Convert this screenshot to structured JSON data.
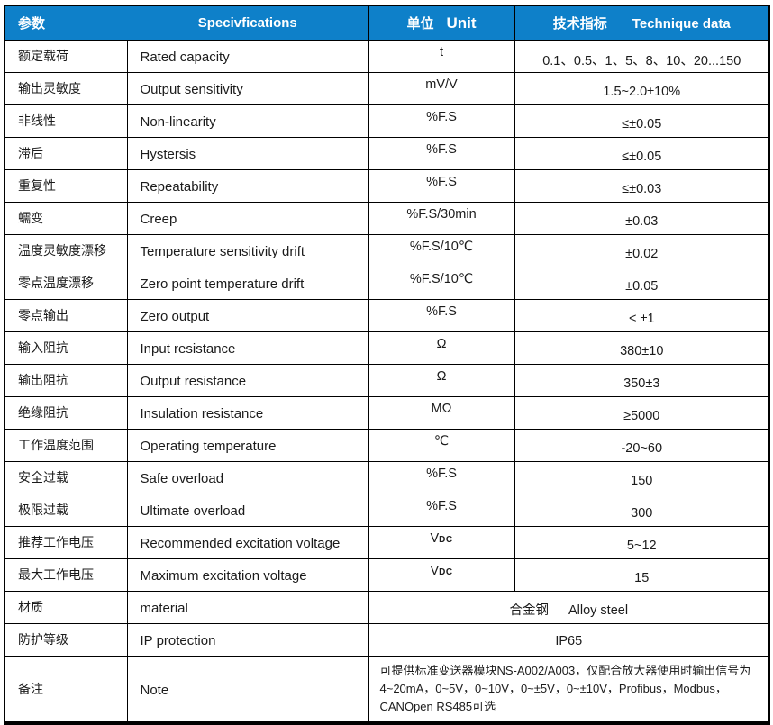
{
  "colors": {
    "header_bg": "#0E80C9",
    "border": "#000000",
    "text": "#1B1B1B"
  },
  "table": {
    "header": {
      "param_cn": "参数",
      "spec_en": "Specivfications",
      "unit_cn": "单位",
      "unit_en": "Unit",
      "tech_cn": "技术指标",
      "tech_en": "Technique data"
    },
    "rows": [
      {
        "cn": "额定载荷",
        "en": "Rated capacity",
        "unit": "t",
        "value": "0.1、0.5、1、5、8、10、20...150"
      },
      {
        "cn": "输出灵敏度",
        "en": "Output sensitivity",
        "unit": "mV/V",
        "value": "1.5~2.0±10%"
      },
      {
        "cn": "非线性",
        "en": "Non-linearity",
        "unit": "%F.S",
        "value": "≤±0.05"
      },
      {
        "cn": "滞后",
        "en": "Hystersis",
        "unit": "%F.S",
        "value": "≤±0.05"
      },
      {
        "cn": "重复性",
        "en": "Repeatability",
        "unit": "%F.S",
        "value": "≤±0.03"
      },
      {
        "cn": "蠕变",
        "en": "Creep",
        "unit": "%F.S/30min",
        "value": "±0.03"
      },
      {
        "cn": "温度灵敏度漂移",
        "en": "Temperature sensitivity drift",
        "unit": "%F.S/10℃",
        "value": "±0.02"
      },
      {
        "cn": "零点温度漂移",
        "en": "Zero point temperature drift",
        "unit": "%F.S/10℃",
        "value": "±0.05"
      },
      {
        "cn": "零点输出",
        "en": "Zero output",
        "unit": "%F.S",
        "value": "< ±1"
      },
      {
        "cn": "输入阻抗",
        "en": "Input resistance",
        "unit": "Ω",
        "value": "380±10"
      },
      {
        "cn": "输出阻抗",
        "en": "Output resistance",
        "unit": "Ω",
        "value": "350±3"
      },
      {
        "cn": "绝缘阻抗",
        "en": "Insulation resistance",
        "unit": "MΩ",
        "value": "≥5000"
      },
      {
        "cn": "工作温度范围",
        "en": "Operating temperature",
        "unit": "℃",
        "value": "-20~60"
      },
      {
        "cn": "安全过载",
        "en": "Safe overload",
        "unit": "%F.S",
        "value": "150"
      },
      {
        "cn": "极限过载",
        "en": "Ultimate overload",
        "unit": "%F.S",
        "value": "300"
      },
      {
        "cn": "推荐工作电压",
        "en": "Recommended excitation voltage",
        "unit": "V",
        "unit_sub": "DC",
        "value": "5~12"
      },
      {
        "cn": "最大工作电压",
        "en": "Maximum excitation voltage",
        "unit": "V",
        "unit_sub": "DC",
        "value": "15"
      },
      {
        "cn": "材质",
        "en": "material",
        "merged": true,
        "value_cn": "合金钢",
        "value_en": "Alloy steel"
      },
      {
        "cn": "防护等级",
        "en": "IP protection",
        "merged": true,
        "value": "IP65"
      },
      {
        "cn": "备注",
        "en": "Note",
        "merged": true,
        "note": true,
        "value": "可提供标准变送器模块NS-A002/A003，仅配合放大器使用时输出信号为4~20mA，0~5V，0~10V，0~±5V，0~±10V，Profibus，Modbus，CANOpen RS485可选"
      }
    ]
  }
}
